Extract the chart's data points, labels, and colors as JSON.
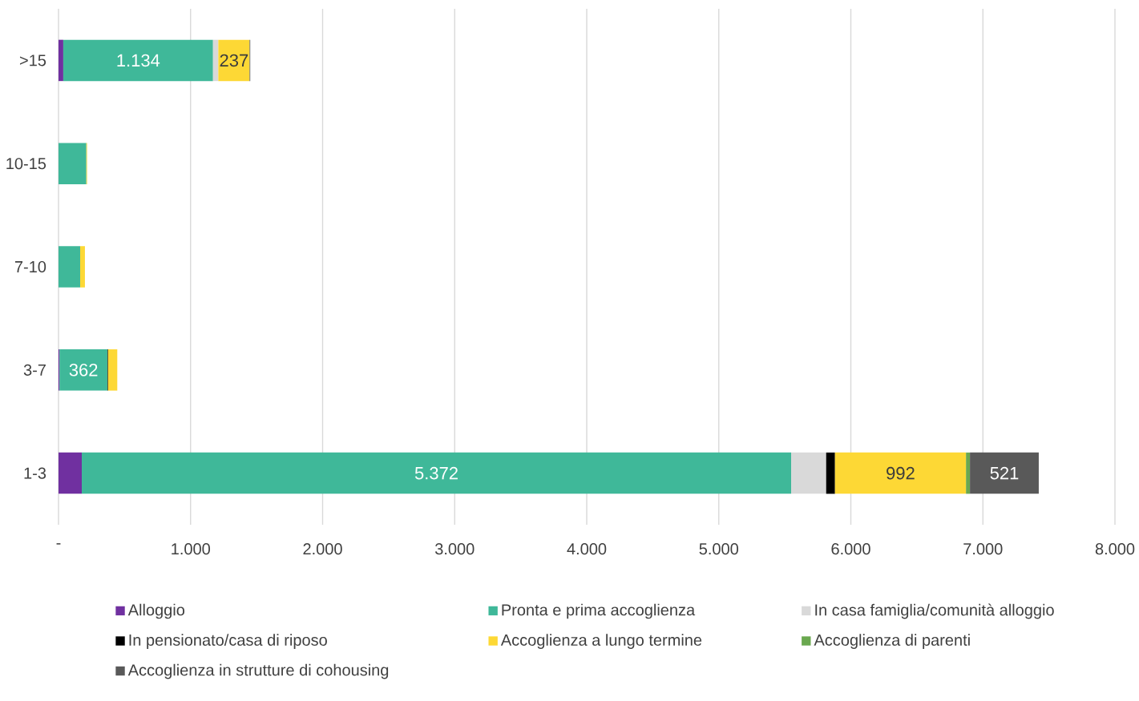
{
  "chart_data": {
    "type": "bar",
    "orientation": "horizontal",
    "stacked": true,
    "categories": [
      ">15",
      "10-15",
      "7-10",
      "3-7",
      "1-3"
    ],
    "series": [
      {
        "name": "Alloggio",
        "color": "#7030a0",
        "values": [
          36,
          null,
          null,
          8,
          176
        ]
      },
      {
        "name": "Pronta e prima accoglienza",
        "color": "#3fb899",
        "values": [
          1134,
          211,
          164,
          362,
          5372
        ],
        "value_labels": [
          "1.134",
          null,
          null,
          "362",
          "5.372"
        ]
      },
      {
        "name": "In casa famiglia/comunità alloggio",
        "color": "#d9d9d9",
        "values": [
          40,
          null,
          null,
          null,
          265
        ]
      },
      {
        "name": "In pensionato/casa di riposo",
        "color": "#000000",
        "values": [
          null,
          null,
          null,
          5,
          67
        ]
      },
      {
        "name": "Accoglienza a lungo termine",
        "color": "#fdd835",
        "values": [
          237,
          5,
          36,
          70,
          992
        ],
        "value_labels": [
          "237",
          null,
          null,
          null,
          "992"
        ]
      },
      {
        "name": "Accoglienza di parenti",
        "color": "#6aa84f",
        "values": [
          null,
          null,
          null,
          null,
          30
        ]
      },
      {
        "name": "Accoglienza in strutture di cohousing",
        "color": "#595959",
        "values": [
          5,
          null,
          null,
          null,
          521
        ],
        "value_labels": [
          null,
          null,
          null,
          null,
          "521"
        ]
      }
    ],
    "xlim": [
      0,
      8000
    ],
    "xticks": [
      {
        "value": 0,
        "label": "-"
      },
      {
        "value": 1000,
        "label": "1.000"
      },
      {
        "value": 2000,
        "label": "2.000"
      },
      {
        "value": 3000,
        "label": "3.000"
      },
      {
        "value": 4000,
        "label": "4.000"
      },
      {
        "value": 5000,
        "label": "5.000"
      },
      {
        "value": 6000,
        "label": "6.000"
      },
      {
        "value": 7000,
        "label": "7.000"
      },
      {
        "value": 8000,
        "label": "8.000"
      }
    ],
    "grid": "x",
    "legend": "bottom"
  }
}
